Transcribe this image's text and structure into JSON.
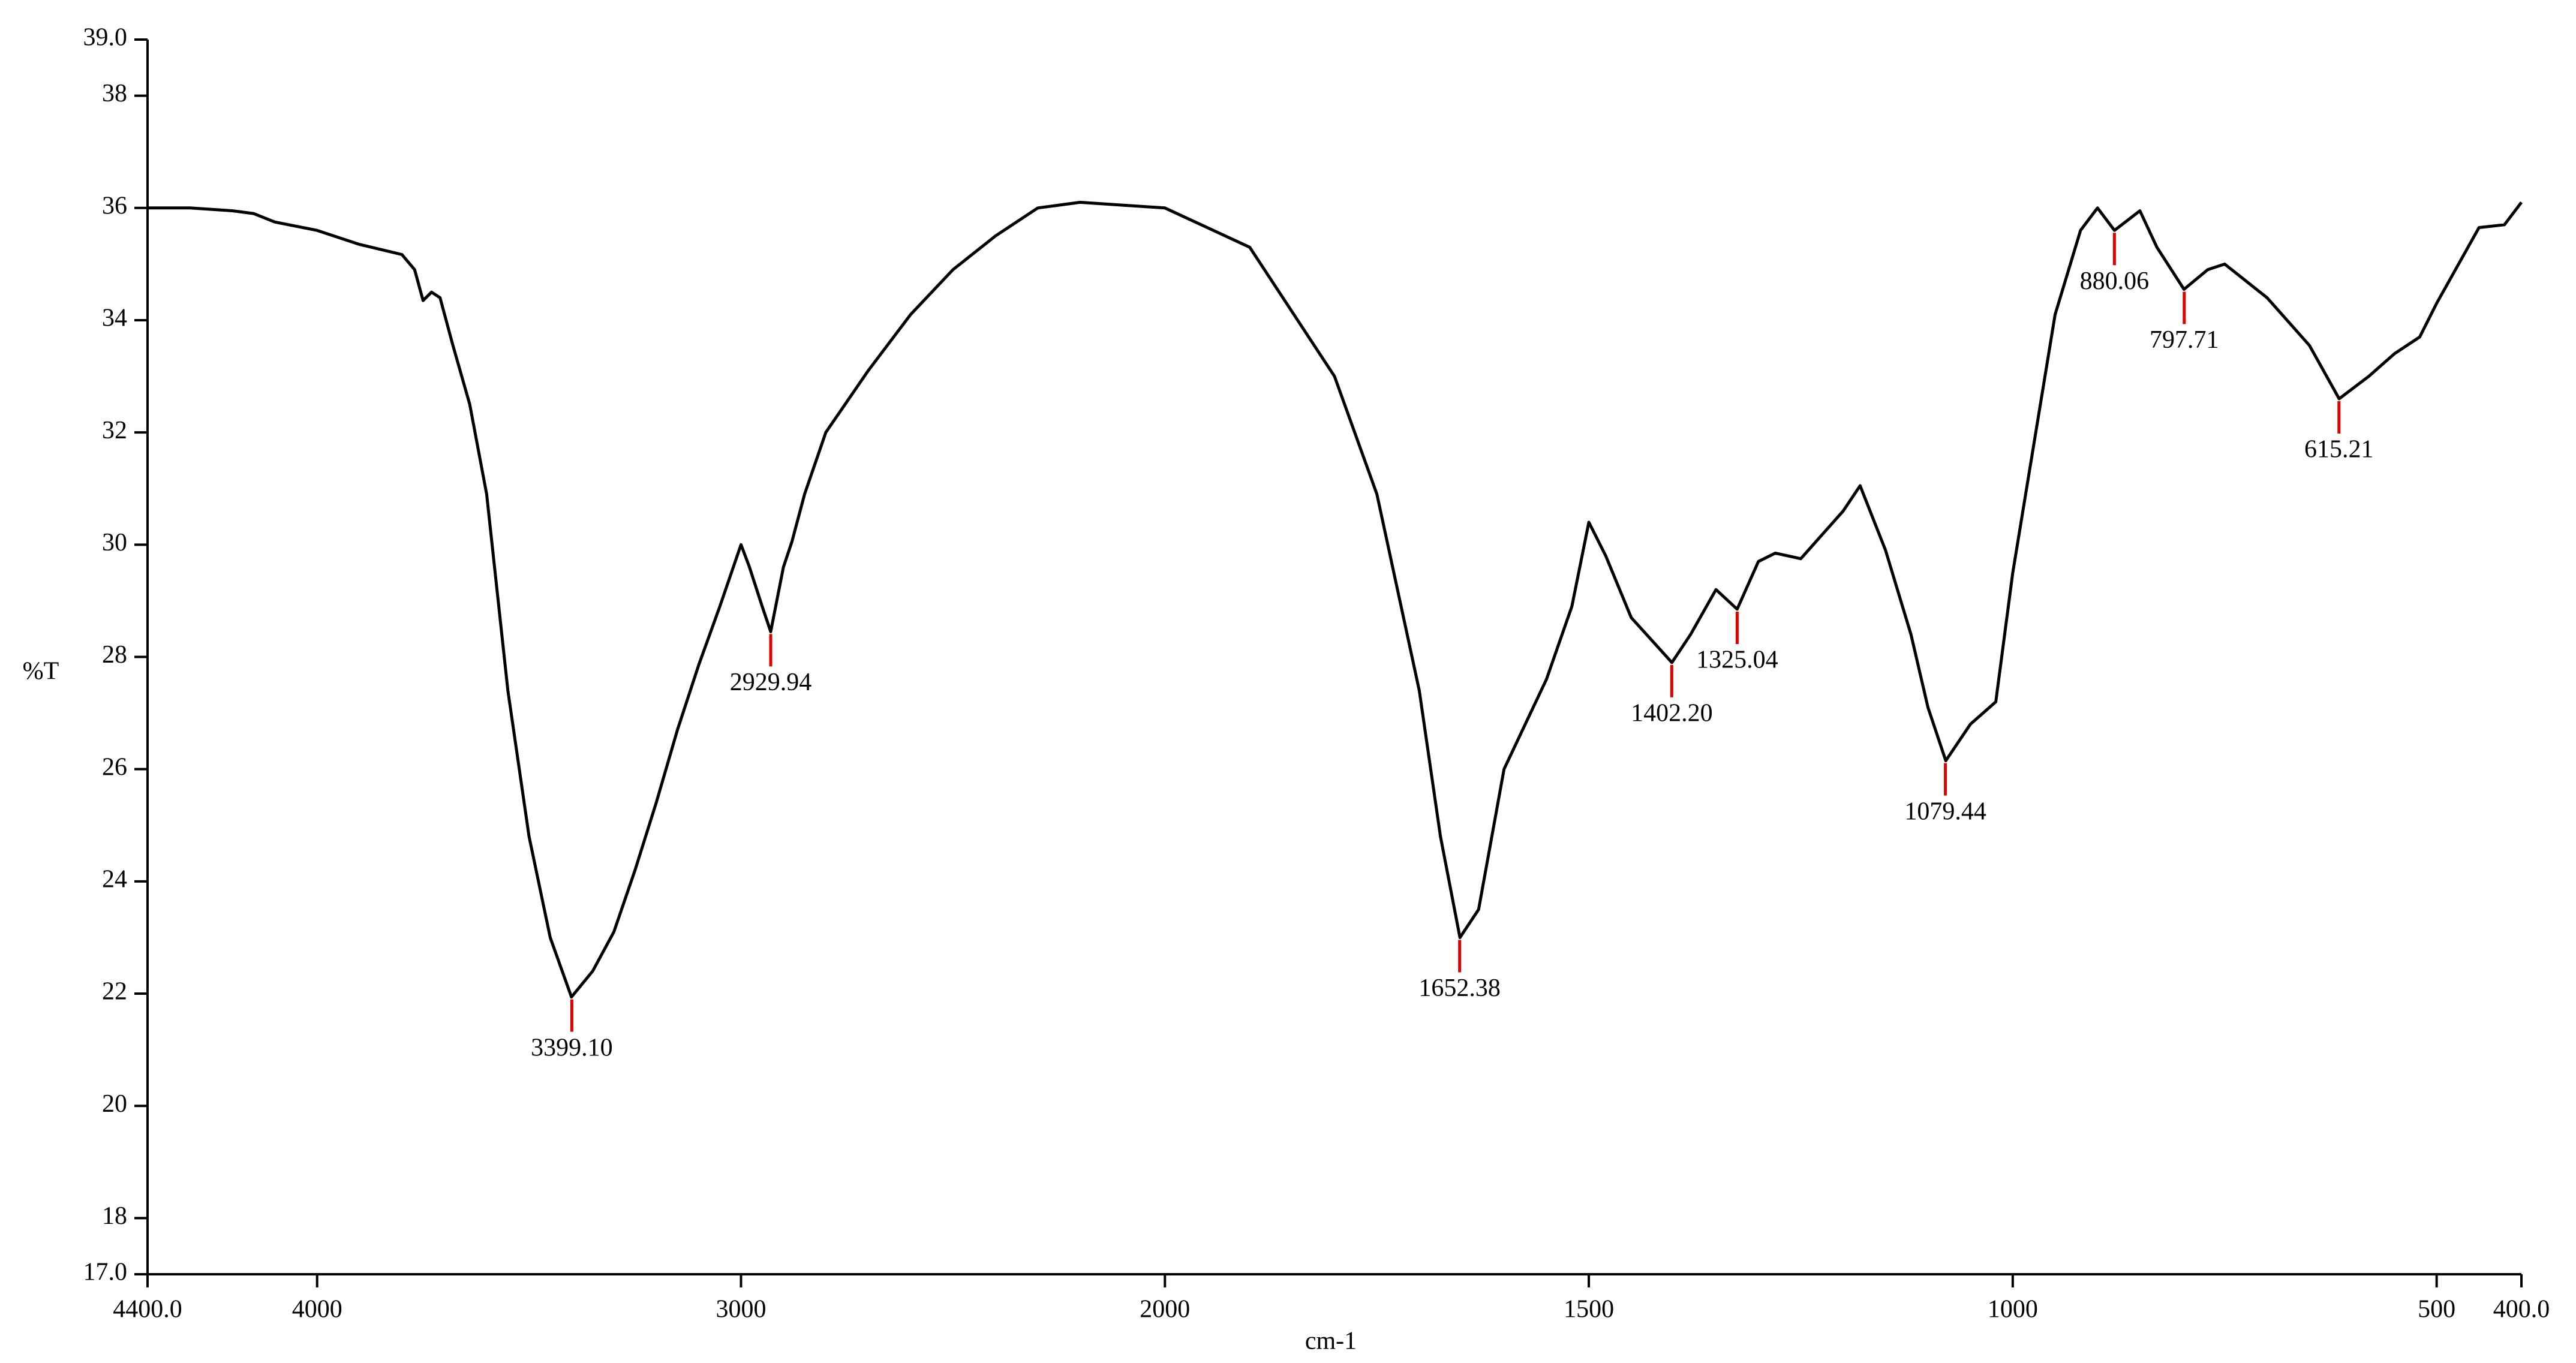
{
  "chart_data": {
    "type": "line",
    "xlabel": "cm-1",
    "ylabel": "%T",
    "color": "#000000",
    "peak_color": "#e00000",
    "xlim": [
      4400,
      400
    ],
    "xbreak": 2000,
    "xbreak_expansion": 2,
    "ylim": [
      17,
      39
    ],
    "xticks": [
      {
        "value": 4400,
        "label": "4400.0"
      },
      4000,
      3000,
      2000,
      1500,
      1000,
      500,
      {
        "value": 400,
        "label": "400.0"
      }
    ],
    "yticks": [
      {
        "value": 17,
        "label": "17.0"
      },
      18,
      20,
      22,
      24,
      26,
      28,
      30,
      32,
      34,
      36,
      38,
      {
        "value": 39,
        "label": "39.0"
      }
    ],
    "x": [
      4400,
      4300,
      4200,
      4150,
      4100,
      4000,
      3900,
      3800,
      3770,
      3750,
      3730,
      3710,
      3680,
      3640,
      3600,
      3550,
      3500,
      3450,
      3400,
      3350,
      3300,
      3250,
      3200,
      3150,
      3100,
      3050,
      3000,
      2980,
      2950,
      2930,
      2900,
      2880,
      2850,
      2800,
      2700,
      2600,
      2500,
      2400,
      2300,
      2200,
      2100,
      2000,
      1900,
      1800,
      1750,
      1700,
      1675,
      1652,
      1630,
      1600,
      1550,
      1520,
      1500,
      1480,
      1450,
      1420,
      1402,
      1380,
      1350,
      1325,
      1300,
      1280,
      1250,
      1200,
      1180,
      1150,
      1120,
      1100,
      1079,
      1050,
      1020,
      1000,
      950,
      920,
      900,
      880,
      850,
      830,
      798,
      770,
      750,
      700,
      650,
      615,
      580,
      550,
      520,
      500,
      450,
      420,
      400
    ],
    "values": [
      36.0,
      36.0,
      35.95,
      35.9,
      35.75,
      35.6,
      35.35,
      35.17,
      34.9,
      34.35,
      34.5,
      34.4,
      33.56,
      32.5,
      30.9,
      27.4,
      24.8,
      23.0,
      21.94,
      22.4,
      23.1,
      24.2,
      25.4,
      26.7,
      27.85,
      28.9,
      30.0,
      29.6,
      28.9,
      28.45,
      29.6,
      30.05,
      30.9,
      32.0,
      33.1,
      34.1,
      34.9,
      35.5,
      36.0,
      36.1,
      36.05,
      36.0,
      35.3,
      33.0,
      30.9,
      27.4,
      24.8,
      23.0,
      23.5,
      26.0,
      27.6,
      28.9,
      30.4,
      29.8,
      28.7,
      28.2,
      27.9,
      28.4,
      29.2,
      28.85,
      29.7,
      29.85,
      29.75,
      30.6,
      31.05,
      29.9,
      28.4,
      27.1,
      26.15,
      26.8,
      27.2,
      29.5,
      34.1,
      35.6,
      36.0,
      35.6,
      35.95,
      35.3,
      34.55,
      34.9,
      35.0,
      34.4,
      33.55,
      32.6,
      33.0,
      33.4,
      33.7,
      34.3,
      35.65,
      35.7,
      36.1
    ],
    "peaks": {
      "x": [
        {
          "value": 3399.1,
          "label": "3399.10"
        },
        {
          "value": 2929.94,
          "label": "2929.94"
        },
        {
          "value": 1652.38,
          "label": "1652.38"
        },
        {
          "value": 1402.2,
          "label": "1402.20"
        },
        {
          "value": 1325.04,
          "label": "1325.04"
        },
        {
          "value": 1079.44,
          "label": "1079.44"
        },
        {
          "value": 880.06,
          "label": "880.06"
        },
        {
          "value": 797.71,
          "label": "797.71"
        },
        {
          "value": 615.21,
          "label": "615.21"
        }
      ],
      "values": [
        21.94,
        28.45,
        23.0,
        27.9,
        28.85,
        26.15,
        35.6,
        34.55,
        32.6
      ]
    }
  }
}
